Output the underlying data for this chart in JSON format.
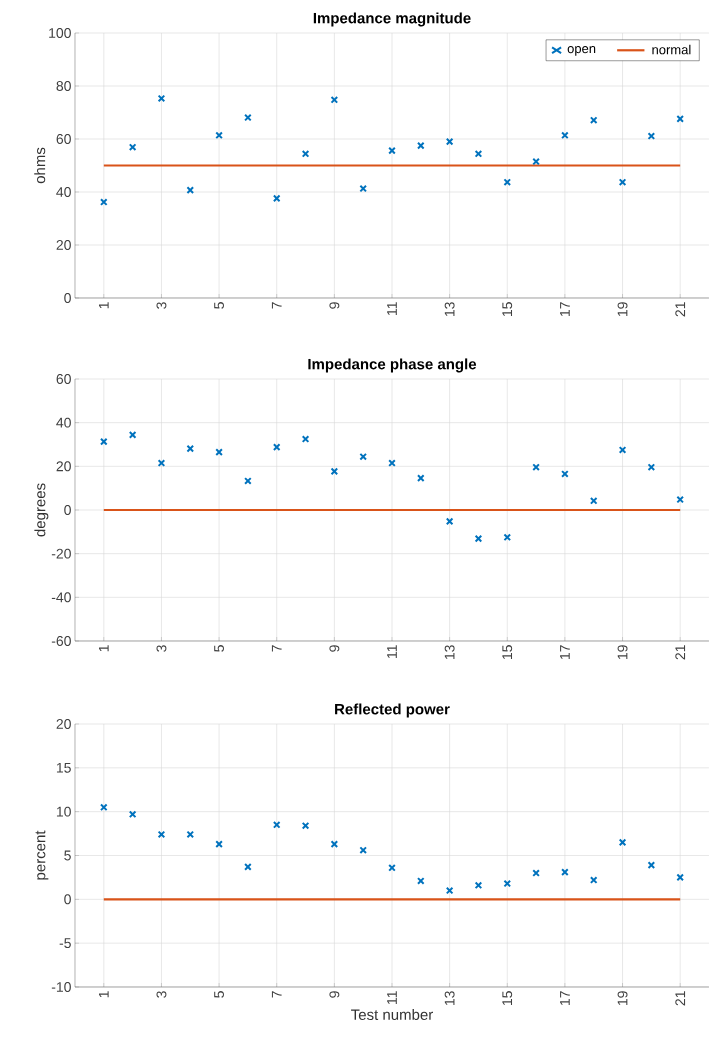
{
  "chart_data": [
    {
      "type": "scatter",
      "title": "Impedance magnitude",
      "ylabel": "ohms",
      "x": [
        1,
        2,
        3,
        4,
        5,
        6,
        7,
        8,
        9,
        10,
        11,
        12,
        13,
        14,
        15,
        16,
        17,
        18,
        19,
        20,
        21
      ],
      "xlim": [
        0,
        22
      ],
      "xticks": [
        1,
        3,
        5,
        7,
        9,
        11,
        13,
        15,
        17,
        19,
        21
      ],
      "ylim": [
        0,
        100
      ],
      "yticks": [
        0,
        20,
        40,
        60,
        80,
        100
      ],
      "grid": true,
      "legend": "top right",
      "series": [
        {
          "name": "open",
          "marker": "cross",
          "color": "#0072bd",
          "values": [
            36.2,
            56.9,
            75.3,
            40.7,
            61.4,
            68.1,
            37.6,
            54.4,
            74.8,
            41.3,
            55.6,
            57.5,
            59.0,
            54.4,
            43.7,
            51.5,
            61.4,
            67.1,
            43.7,
            61.1,
            67.6
          ]
        },
        {
          "name": "normal",
          "type": "line",
          "marker": "none",
          "color": "#d95319",
          "values": [
            50,
            50,
            50,
            50,
            50,
            50,
            50,
            50,
            50,
            50,
            50,
            50,
            50,
            50,
            50,
            50,
            50,
            50,
            50,
            50,
            50
          ]
        }
      ]
    },
    {
      "type": "scatter",
      "title": "Impedance phase angle",
      "ylabel": "degrees",
      "x": [
        1,
        2,
        3,
        4,
        5,
        6,
        7,
        8,
        9,
        10,
        11,
        12,
        13,
        14,
        15,
        16,
        17,
        18,
        19,
        20,
        21
      ],
      "xlim": [
        0,
        22
      ],
      "xticks": [
        1,
        3,
        5,
        7,
        9,
        11,
        13,
        15,
        17,
        19,
        21
      ],
      "ylim": [
        -60,
        60
      ],
      "yticks": [
        -60,
        -40,
        -20,
        0,
        20,
        40,
        60
      ],
      "grid": true,
      "series": [
        {
          "marker": "cross",
          "color": "#0072bd",
          "values": [
            31.3,
            34.4,
            21.5,
            28.1,
            26.5,
            13.3,
            28.8,
            32.5,
            17.7,
            24.4,
            21.5,
            14.6,
            -5.2,
            -13.1,
            -12.5,
            19.6,
            16.5,
            4.2,
            27.5,
            19.6,
            4.8
          ]
        },
        {
          "type": "line",
          "marker": "none",
          "color": "#d95319",
          "values": [
            0,
            0,
            0,
            0,
            0,
            0,
            0,
            0,
            0,
            0,
            0,
            0,
            0,
            0,
            0,
            0,
            0,
            0,
            0,
            0,
            0
          ]
        }
      ]
    },
    {
      "type": "scatter",
      "title": "Reflected power",
      "ylabel": "percent",
      "xlabel": "Test number",
      "x": [
        1,
        2,
        3,
        4,
        5,
        6,
        7,
        8,
        9,
        10,
        11,
        12,
        13,
        14,
        15,
        16,
        17,
        18,
        19,
        20,
        21
      ],
      "xlim": [
        0,
        22
      ],
      "xticks": [
        1,
        3,
        5,
        7,
        9,
        11,
        13,
        15,
        17,
        19,
        21
      ],
      "ylim": [
        -10,
        20
      ],
      "yticks": [
        -10,
        -5,
        0,
        5,
        10,
        15,
        20
      ],
      "grid": true,
      "series": [
        {
          "marker": "cross",
          "color": "#0072bd",
          "values": [
            10.5,
            9.7,
            7.4,
            7.4,
            6.3,
            3.7,
            8.5,
            8.4,
            6.3,
            5.6,
            3.6,
            2.1,
            1.0,
            1.6,
            1.8,
            3.0,
            3.1,
            2.2,
            6.5,
            3.9,
            2.5
          ]
        },
        {
          "type": "line",
          "marker": "none",
          "color": "#d95319",
          "values": [
            0,
            0,
            0,
            0,
            0,
            0,
            0,
            0,
            0,
            0,
            0,
            0,
            0,
            0,
            0,
            0,
            0,
            0,
            0,
            0,
            0
          ]
        }
      ]
    }
  ]
}
